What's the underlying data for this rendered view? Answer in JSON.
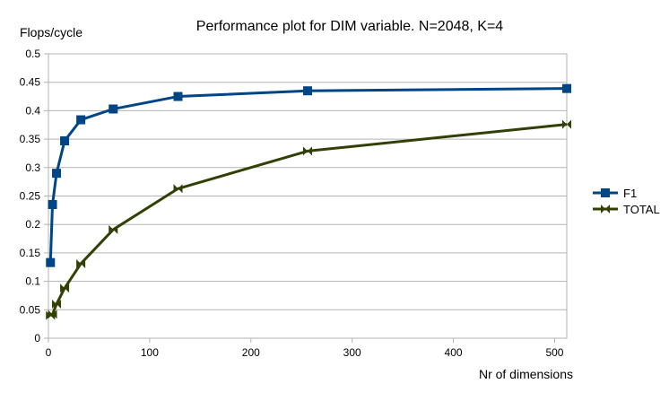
{
  "chart_data": {
    "type": "line",
    "title": "Performance plot for DIM variable. N=2048, K=4",
    "xlabel": "Nr of dimensions",
    "ylabel": "Flops/cycle",
    "xlim": [
      0,
      512
    ],
    "ylim": [
      0,
      0.5
    ],
    "x_ticks": [
      0,
      100,
      200,
      300,
      400,
      500
    ],
    "y_ticks": [
      0,
      0.05,
      0.1,
      0.15,
      0.2,
      0.25,
      0.3,
      0.35,
      0.4,
      0.45,
      0.5
    ],
    "grid": "horizontal",
    "legend_position": "right",
    "x": [
      2,
      4,
      8,
      16,
      32,
      64,
      128,
      256,
      512
    ],
    "series": [
      {
        "name": "F1",
        "color": "#004586",
        "marker": "square",
        "values": [
          0.133,
          0.235,
          0.29,
          0.347,
          0.384,
          0.403,
          0.425,
          0.435,
          0.439
        ]
      },
      {
        "name": "TOTAL",
        "color": "#314004",
        "marker": "bowtie",
        "values": [
          0.04,
          0.042,
          0.06,
          0.088,
          0.131,
          0.191,
          0.263,
          0.329,
          0.376
        ]
      }
    ]
  }
}
